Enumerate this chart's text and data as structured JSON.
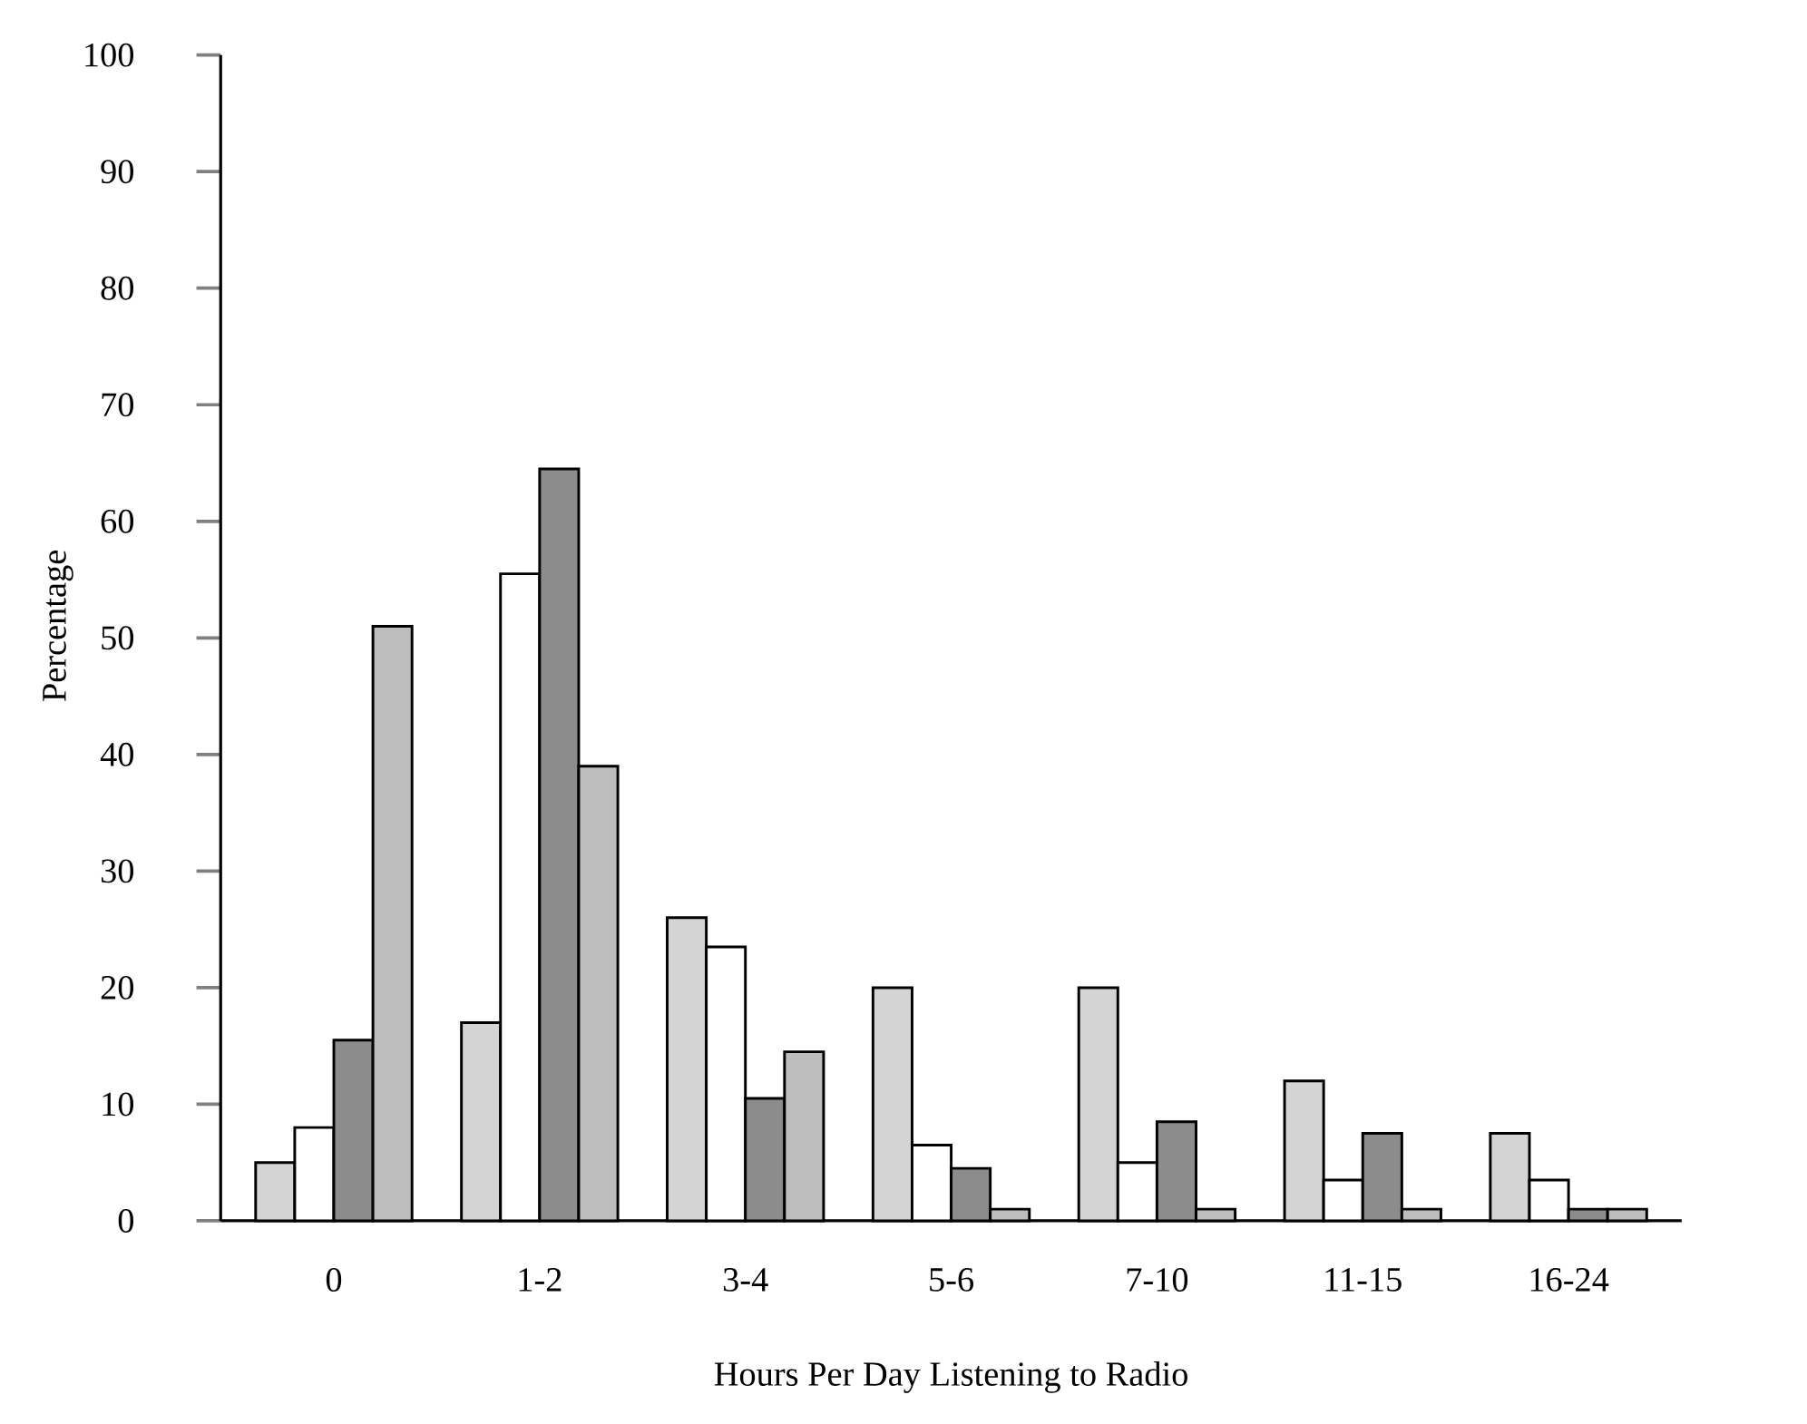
{
  "chart_data": {
    "type": "bar",
    "xlabel": "Hours Per Day Listening to Radio",
    "ylabel": "Percentage",
    "categories": [
      "0",
      "1-2",
      "3-4",
      "5-6",
      "7-10",
      "11-15",
      "16-24"
    ],
    "series": [
      {
        "color": "#d4d4d4",
        "values": [
          5,
          17,
          26,
          20,
          20,
          12,
          7.5
        ]
      },
      {
        "color": "#ffffff",
        "values": [
          8,
          55.5,
          23.5,
          6.5,
          5,
          3.5,
          3.5
        ]
      },
      {
        "color": "#8c8c8c",
        "values": [
          15.5,
          64.5,
          10.5,
          4.5,
          8.5,
          7.5,
          1
        ]
      },
      {
        "color": "#bdbdbd",
        "values": [
          51,
          39,
          14.5,
          1,
          1,
          1,
          1
        ]
      }
    ],
    "ylim": [
      0,
      100
    ],
    "yticks": [
      0,
      10,
      20,
      30,
      40,
      50,
      60,
      70,
      80,
      90,
      100
    ]
  }
}
